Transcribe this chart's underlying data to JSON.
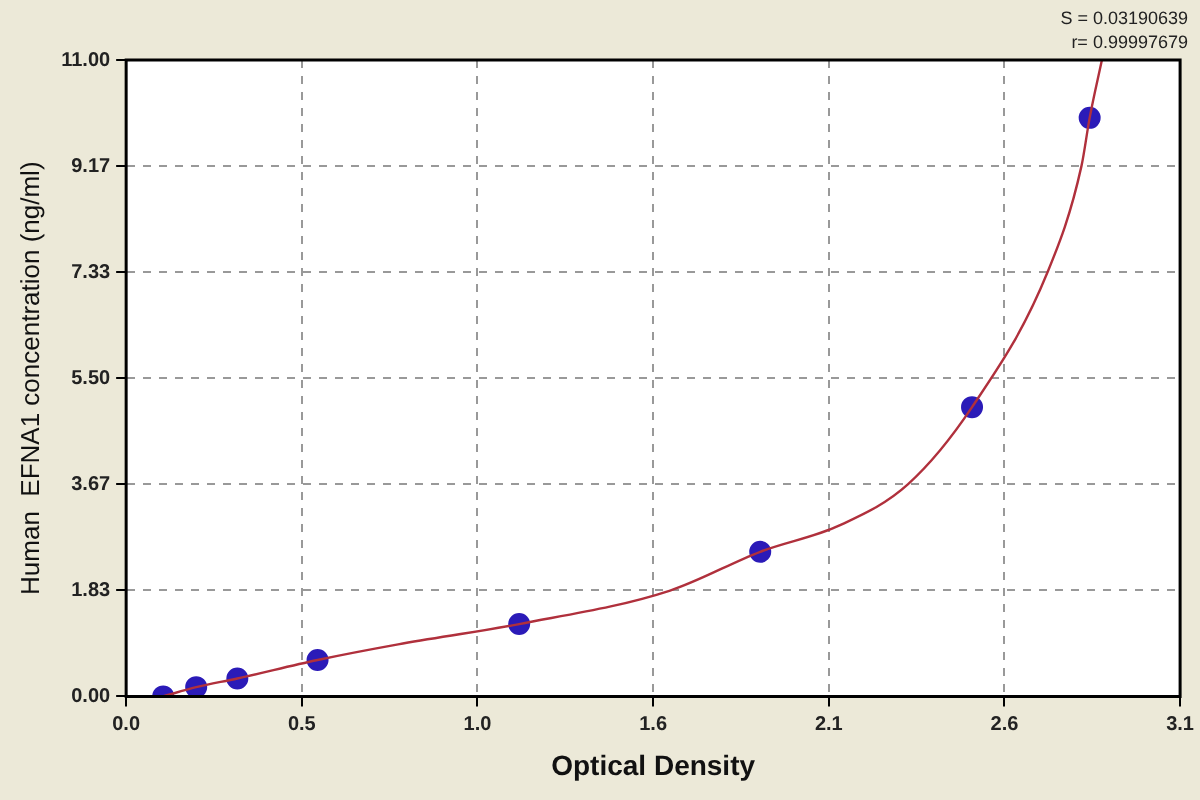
{
  "chart_data": {
    "type": "scatter",
    "xlabel": "Optical Density",
    "ylabel": "Human  EFNA1 concentration (ng/ml)",
    "annotations": [
      "S = 0.03190639",
      "r= 0.99997679"
    ],
    "xlim": [
      0,
      3.1
    ],
    "xticks": [
      {
        "value": 0,
        "label": "0.0"
      },
      {
        "value": 0.5167,
        "label": "0.5"
      },
      {
        "value": 1.0333,
        "label": "1.0"
      },
      {
        "value": 1.55,
        "label": "1.6"
      },
      {
        "value": 2.0667,
        "label": "2.1"
      },
      {
        "value": 2.5833,
        "label": "2.6"
      },
      {
        "value": 3.1,
        "label": "3.1"
      }
    ],
    "ylim": [
      0,
      11
    ],
    "yticks": [
      {
        "value": 0,
        "label": "0.00"
      },
      {
        "value": 1.8333,
        "label": "1.83"
      },
      {
        "value": 3.6667,
        "label": "3.67"
      },
      {
        "value": 5.5,
        "label": "5.50"
      },
      {
        "value": 7.3333,
        "label": "7.33"
      },
      {
        "value": 9.1667,
        "label": "9.17"
      },
      {
        "value": 11,
        "label": "11.00"
      }
    ],
    "grid": true,
    "legend": false,
    "marker": "circle",
    "series": [
      {
        "type": "line",
        "color": "#b0303c",
        "marker": "none",
        "x": [
          0.109,
          0.206,
          0.327,
          0.563,
          0.8,
          1.156,
          1.6,
          1.865,
          2.1,
          2.3,
          2.488,
          2.71,
          2.81,
          2.834,
          2.87
        ],
        "values": [
          0,
          0.16,
          0.31,
          0.63,
          0.9,
          1.25,
          1.83,
          2.5,
          2.96,
          3.67,
          5,
          7.33,
          9.17,
          10,
          11
        ]
      },
      {
        "color": "#2b1bb8",
        "x": [
          0.109,
          0.206,
          0.327,
          0.563,
          1.156,
          1.865,
          2.488,
          2.834
        ],
        "values": [
          0,
          0.16,
          0.31,
          0.63,
          1.25,
          2.5,
          5,
          10
        ]
      }
    ]
  }
}
